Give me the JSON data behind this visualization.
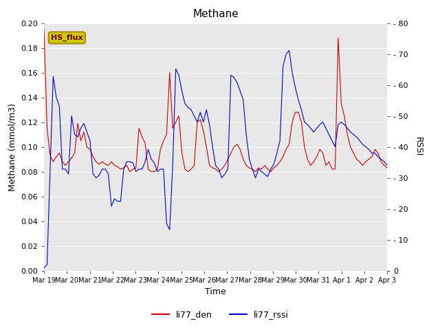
{
  "title": "Methane",
  "xlabel": "Time",
  "ylabel_left": "Methane (mmol/m3)",
  "ylabel_right": "RSSI",
  "ylim_left": [
    0.0,
    0.2
  ],
  "ylim_right": [
    0,
    80
  ],
  "bg_color": "#e8e8e8",
  "line_red_color": "#cc0000",
  "line_blue_color": "#0000cc",
  "annotation_text": "HS_flux",
  "annotation_bg": "#cccc00",
  "annotation_edge": "#aa8800",
  "legend_red": "li77_den",
  "legend_blue": "li77_rssi",
  "xtick_labels": [
    "Mar 19",
    "Mar 20",
    "Mar 21",
    "Mar 22",
    "Mar 23",
    "Mar 24",
    "Mar 25",
    "Mar 26",
    "Mar 27",
    "Mar 28",
    "Mar 29",
    "Mar 30",
    "Mar 31",
    "Apr 1",
    "Apr 2",
    "Apr 3"
  ],
  "yticks_left": [
    0.0,
    0.02,
    0.04,
    0.06,
    0.08,
    0.1,
    0.12,
    0.14,
    0.16,
    0.18,
    0.2
  ],
  "yticks_right": [
    0,
    10,
    20,
    30,
    40,
    50,
    60,
    70,
    80
  ],
  "red_data": [
    0.195,
    0.115,
    0.093,
    0.088,
    0.092,
    0.095,
    0.088,
    0.085,
    0.088,
    0.091,
    0.095,
    0.119,
    0.105,
    0.112,
    0.1,
    0.098,
    0.092,
    0.088,
    0.086,
    0.088,
    0.086,
    0.085,
    0.088,
    0.085,
    0.084,
    0.082,
    0.083,
    0.085,
    0.08,
    0.082,
    0.083,
    0.115,
    0.108,
    0.103,
    0.082,
    0.08,
    0.08,
    0.082,
    0.098,
    0.105,
    0.11,
    0.16,
    0.115,
    0.12,
    0.125,
    0.095,
    0.082,
    0.08,
    0.082,
    0.085,
    0.12,
    0.122,
    0.113,
    0.1,
    0.085,
    0.083,
    0.082,
    0.08,
    0.082,
    0.085,
    0.09,
    0.095,
    0.1,
    0.102,
    0.098,
    0.09,
    0.085,
    0.083,
    0.082,
    0.08,
    0.083,
    0.082,
    0.085,
    0.082,
    0.08,
    0.083,
    0.085,
    0.088,
    0.092,
    0.098,
    0.102,
    0.12,
    0.128,
    0.128,
    0.12,
    0.1,
    0.09,
    0.085,
    0.088,
    0.092,
    0.098,
    0.095,
    0.085,
    0.088,
    0.082,
    0.082,
    0.188,
    0.135,
    0.125,
    0.11,
    0.1,
    0.095,
    0.09,
    0.088,
    0.085,
    0.088,
    0.09,
    0.092,
    0.098,
    0.095,
    0.088,
    0.085,
    0.083
  ],
  "blue_data_rssi": [
    0.8,
    2.0,
    32.8,
    62.8,
    56.0,
    53.2,
    32.8,
    32.8,
    31.2,
    50.0,
    44.0,
    43.2,
    46.0,
    47.6,
    44.8,
    42.0,
    31.2,
    30.0,
    30.8,
    32.8,
    32.8,
    31.2,
    20.8,
    23.2,
    22.4,
    22.4,
    32.8,
    35.2,
    35.2,
    34.8,
    32.0,
    32.8,
    32.8,
    35.2,
    39.2,
    36.0,
    34.8,
    32.0,
    32.8,
    32.8,
    15.2,
    13.2,
    34.0,
    65.2,
    63.2,
    58.0,
    54.0,
    52.8,
    52.0,
    50.0,
    48.0,
    51.2,
    48.0,
    52.0,
    47.2,
    40.0,
    34.0,
    32.8,
    30.0,
    31.2,
    32.8,
    63.2,
    62.4,
    60.8,
    58.0,
    55.2,
    44.0,
    36.0,
    32.8,
    30.0,
    32.8,
    32.0,
    31.2,
    30.4,
    32.8,
    34.4,
    38.0,
    42.0,
    66.0,
    70.0,
    71.2,
    64.0,
    59.2,
    55.2,
    52.0,
    48.0,
    47.2,
    46.0,
    44.8,
    46.0,
    47.2,
    48.0,
    46.0,
    44.0,
    42.0,
    40.0,
    47.2,
    48.0,
    47.2,
    46.0,
    44.8,
    44.0,
    43.2,
    42.0,
    40.8,
    40.0,
    39.2,
    38.0,
    38.0,
    36.8,
    36.0,
    35.2,
    34.0
  ]
}
